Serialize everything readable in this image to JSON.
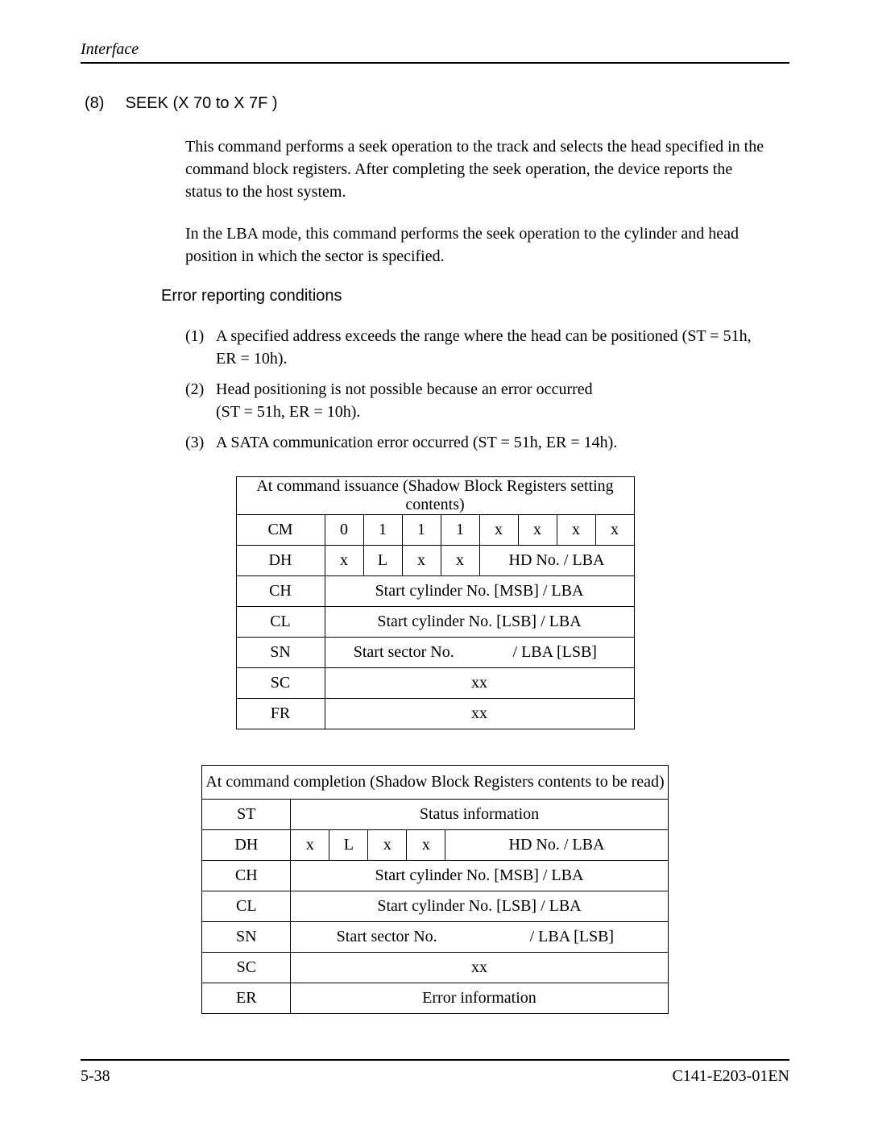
{
  "header": {
    "title": "Interface"
  },
  "section": {
    "number": "(8)",
    "title": "SEEK (X 70  to X 7F )"
  },
  "paragraphs": {
    "p1": "This command performs a seek operation to the track and selects the head specified in the command block registers.  After completing the seek operation, the device reports the status to the host system.",
    "p2": "In the LBA mode, this command performs the seek operation to the cylinder and head position in which the sector is specified."
  },
  "errorHeading": "Error reporting conditions",
  "errors": [
    {
      "num": "(1)",
      "text": "A specified address exceeds the range where the head can be positioned (ST = 51h, ER = 10h)."
    },
    {
      "num": "(2)",
      "text": "Head positioning is not possible because an error occurred \n(ST = 51h, ER = 10h)."
    },
    {
      "num": "(3)",
      "text": "A SATA communication error occurred (ST = 51h, ER = 14h)."
    }
  ],
  "table1": {
    "title": "At command issuance (Shadow Block Registers setting contents)",
    "rows": {
      "CM": {
        "label": "CM",
        "cells": [
          "0",
          "1",
          "1",
          "1",
          "x",
          "x",
          "x",
          "x"
        ]
      },
      "DH": {
        "label": "DH",
        "cells": [
          "x",
          "L",
          "x",
          "x"
        ],
        "merged": "HD No. / LBA"
      },
      "CH": {
        "label": "CH",
        "text": "Start cylinder No. [MSB]  / LBA"
      },
      "CL": {
        "label": "CL",
        "text": "Start cylinder No. [LSB]   / LBA"
      },
      "SN": {
        "label": "SN",
        "left": "Start sector No.",
        "right": "/ LBA [LSB]"
      },
      "SC": {
        "label": "SC",
        "text": "xx"
      },
      "FR": {
        "label": "FR",
        "text": "xx"
      }
    }
  },
  "table2": {
    "title": "At command completion (Shadow Block Registers contents to be read)",
    "rows": {
      "ST": {
        "label": "ST",
        "text": "Status information"
      },
      "DH": {
        "label": "DH",
        "cells": [
          "x",
          "L",
          "x",
          "x"
        ],
        "merged": "HD No. / LBA"
      },
      "CH": {
        "label": "CH",
        "text": "Start cylinder No. [MSB]  / LBA"
      },
      "CL": {
        "label": "CL",
        "text": "Start cylinder No. [LSB]   / LBA"
      },
      "SN": {
        "label": "SN",
        "left": "Start sector No.",
        "right": "/ LBA [LSB]"
      },
      "SC": {
        "label": "SC",
        "text": "xx"
      },
      "ER": {
        "label": "ER",
        "text": "Error information"
      }
    }
  },
  "footer": {
    "left": "5-38",
    "right": "C141-E203-01EN"
  }
}
